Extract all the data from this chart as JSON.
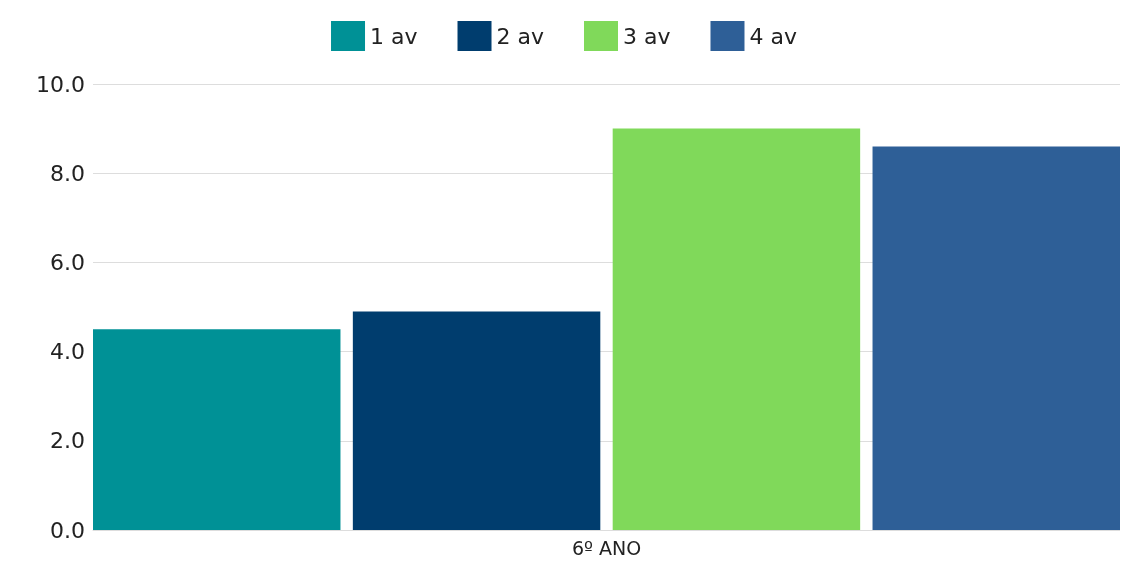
{
  "chart_data": {
    "type": "bar",
    "categories": [
      "6º ANO"
    ],
    "series": [
      {
        "name": "1 av",
        "color": "#009196",
        "values": [
          4.5
        ]
      },
      {
        "name": "2 av",
        "color": "#003d6e",
        "values": [
          4.9
        ]
      },
      {
        "name": "3 av",
        "color": "#80d95a",
        "values": [
          9.0
        ]
      },
      {
        "name": "4 av",
        "color": "#2e5f97",
        "values": [
          8.6
        ]
      }
    ],
    "ylim": [
      0,
      10
    ],
    "yticks": [
      {
        "value": 0,
        "label": "0.0"
      },
      {
        "value": 2,
        "label": "2.0"
      },
      {
        "value": 4,
        "label": "4.0"
      },
      {
        "value": 6,
        "label": "6.0"
      },
      {
        "value": 8,
        "label": "8.0"
      },
      {
        "value": 10,
        "label": "10.0"
      }
    ],
    "grid": "y",
    "legend": "top"
  }
}
